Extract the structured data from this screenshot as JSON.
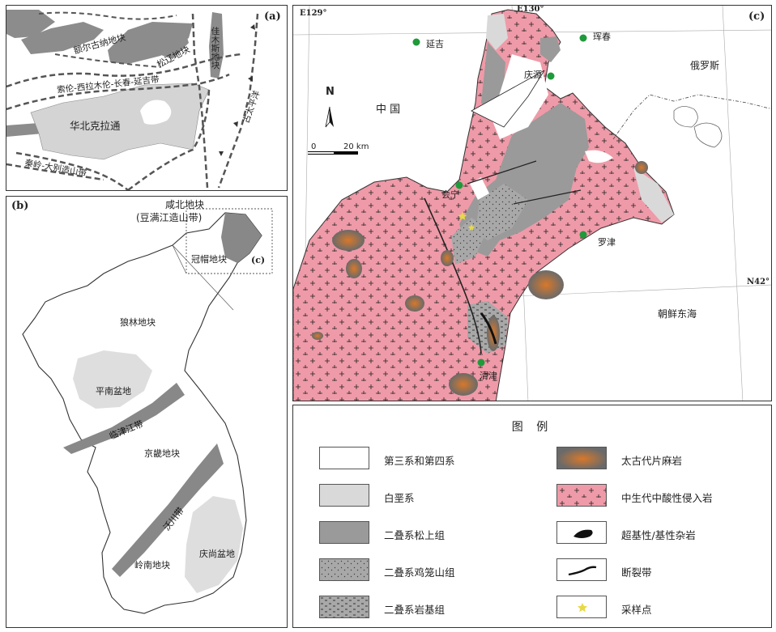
{
  "panel_a": {
    "label": "(a)",
    "blocks": [
      "额尔古纳地块",
      "松辽地块",
      "佳木斯地块",
      "华北克拉通"
    ],
    "belts": [
      "索伦-西拉木伦-长春-延吉带",
      "秦岭-大别造山带",
      "古太平洋"
    ]
  },
  "panel_b": {
    "label": "(b)",
    "inset_title": "咸北地块",
    "inset_sub": "(豆满江造山带)",
    "inset_ref": "(c)",
    "regions": [
      "冠帽地块",
      "狼林地块",
      "平南盆地",
      "临津江带",
      "京畿地块",
      "沃川带",
      "岭南地块",
      "庆尚盆地"
    ]
  },
  "panel_c": {
    "label": "(c)",
    "coords": [
      "E129°",
      "E130°",
      "N42°"
    ],
    "north": "N",
    "scale_start": "0",
    "scale_end": "20 km",
    "countries": [
      "中 国",
      "俄罗斯",
      "朝鲜东海"
    ],
    "cities": [
      "延吉",
      "珲春",
      "庆源",
      "会宁",
      "罗津",
      "清津"
    ]
  },
  "legend": {
    "title": "图 例",
    "items": [
      {
        "label": "第三系和第四系",
        "pattern": "white"
      },
      {
        "label": "白垩系",
        "pattern": "lightgray"
      },
      {
        "label": "二叠系松上组",
        "pattern": "gray"
      },
      {
        "label": "二叠系鸡笼山组",
        "pattern": "gray-dots"
      },
      {
        "label": "二叠系岩基组",
        "pattern": "gray-dashes"
      },
      {
        "label": "太古代片麻岩",
        "pattern": "orange-gradient"
      },
      {
        "label": "中生代中酸性侵入岩",
        "pattern": "pink-crosses"
      },
      {
        "label": "超基性/基性杂岩",
        "pattern": "black-lens"
      },
      {
        "label": "断裂带",
        "pattern": "black-line"
      },
      {
        "label": "采样点",
        "pattern": "star"
      }
    ]
  },
  "colors": {
    "pink": "#ef9aa8",
    "gray": "#9a9a9a",
    "lightgray": "#d9d9d9",
    "city": "#1f9a3a",
    "orange": "#d8782a"
  }
}
